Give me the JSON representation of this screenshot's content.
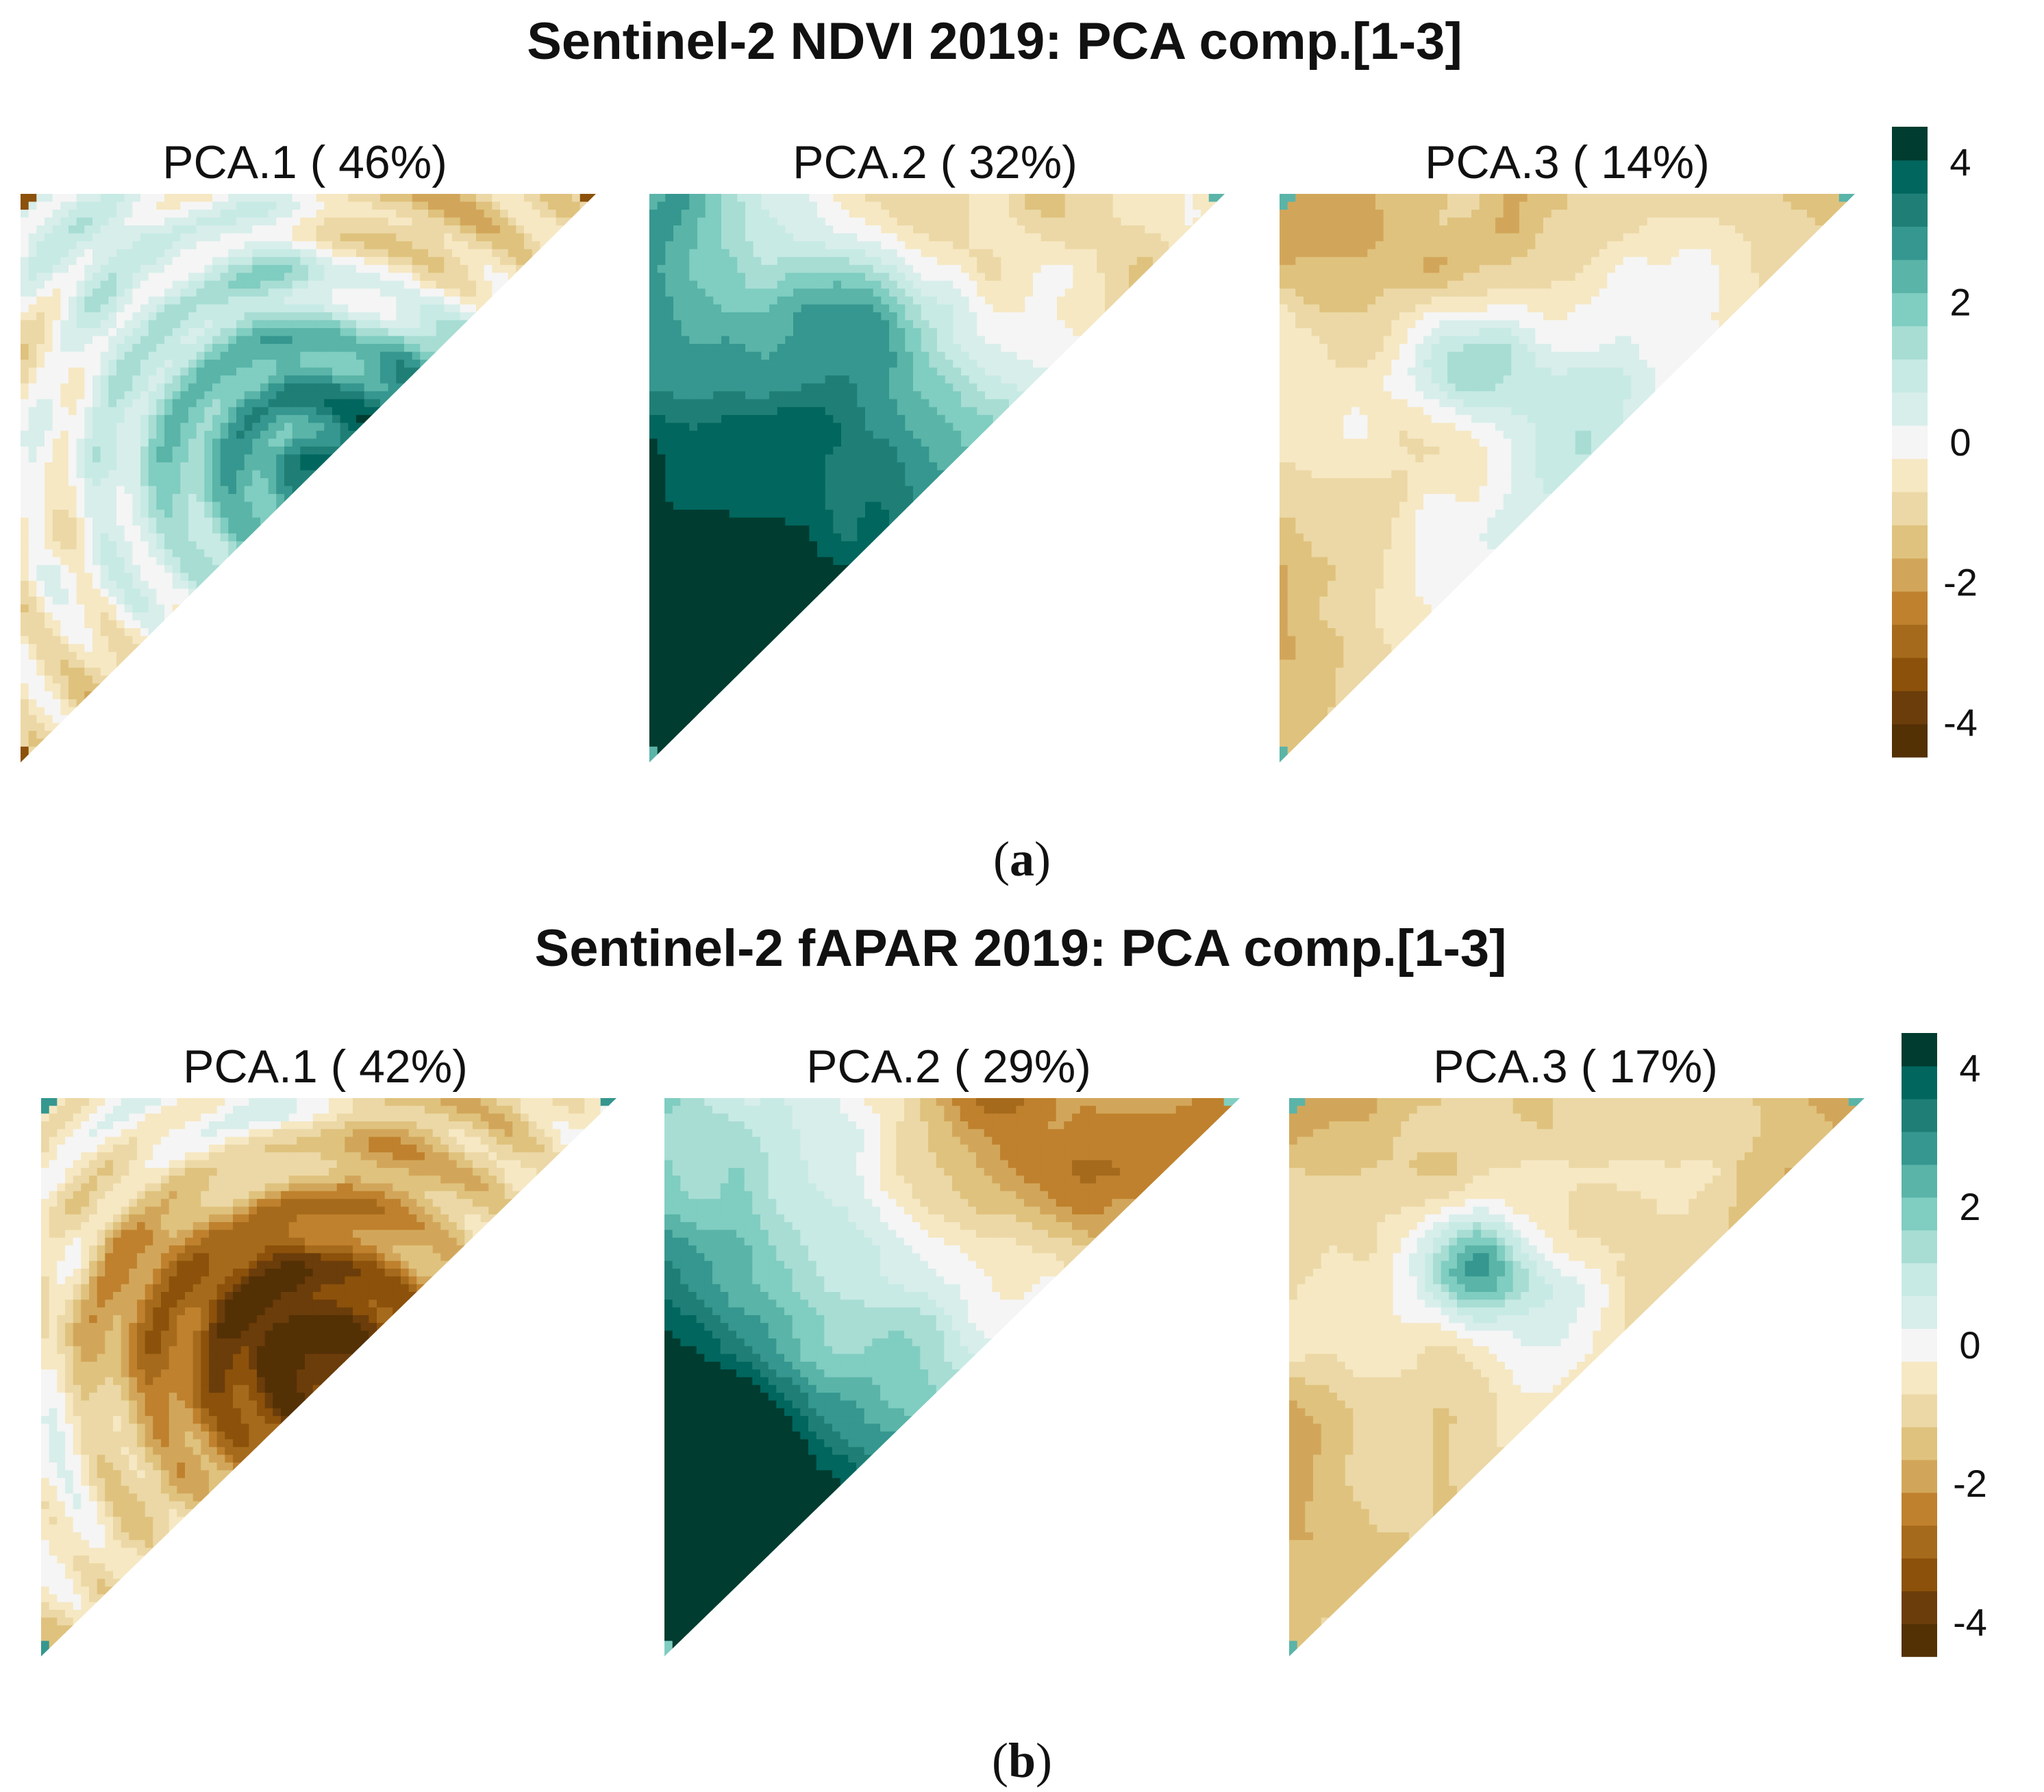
{
  "chart_data": [
    {
      "type": "heatmap",
      "title": "Sentinel-2 NDVI 2019: PCA comp.[1-3]",
      "panel_label": "a",
      "panels": [
        {
          "name": "PCA.1",
          "variance": "46%",
          "title": "PCA.1 ( 46%)",
          "pattern": "ndvi1"
        },
        {
          "name": "PCA.2",
          "variance": "32%",
          "title": "PCA.2 ( 32%)",
          "pattern": "ndvi2"
        },
        {
          "name": "PCA.3",
          "variance": "14%",
          "title": "PCA.3 ( 14%)",
          "pattern": "ndvi3"
        }
      ],
      "colorbar": {
        "range": [
          -4.5,
          4.5
        ],
        "ticks": [
          4,
          2,
          0,
          -2,
          -4
        ],
        "tick_labels": [
          "4",
          "2",
          "0",
          "-2",
          "-4"
        ],
        "palette": "BrBG"
      }
    },
    {
      "type": "heatmap",
      "title": "Sentinel-2 fAPAR 2019: PCA comp.[1-3]",
      "panel_label": "b",
      "panels": [
        {
          "name": "PCA.1",
          "variance": "42%",
          "title": "PCA.1 ( 42%)",
          "pattern": "fapar1"
        },
        {
          "name": "PCA.2",
          "variance": "29%",
          "title": "PCA.2 ( 29%)",
          "pattern": "fapar2"
        },
        {
          "name": "PCA.3",
          "variance": "17%",
          "title": "PCA.3 ( 17%)",
          "pattern": "fapar3"
        }
      ],
      "colorbar": {
        "range": [
          -4.5,
          4.5
        ],
        "ticks": [
          4,
          2,
          0,
          -2,
          -4
        ],
        "tick_labels": [
          "4",
          "2",
          "0",
          "-2",
          "-4"
        ],
        "palette": "BrBG"
      }
    }
  ],
  "colors": {
    "palette": [
      "#543005",
      "#6b3d0a",
      "#8c510a",
      "#a66a1c",
      "#bf812d",
      "#d2a65a",
      "#dfc27d",
      "#ecd8a6",
      "#f6e8c3",
      "#f5f5f5",
      "#d8eeeb",
      "#c7eae5",
      "#a8ddd4",
      "#80cdc1",
      "#5ab4a8",
      "#35978f",
      "#1f7f76",
      "#01665e",
      "#003c30"
    ]
  }
}
